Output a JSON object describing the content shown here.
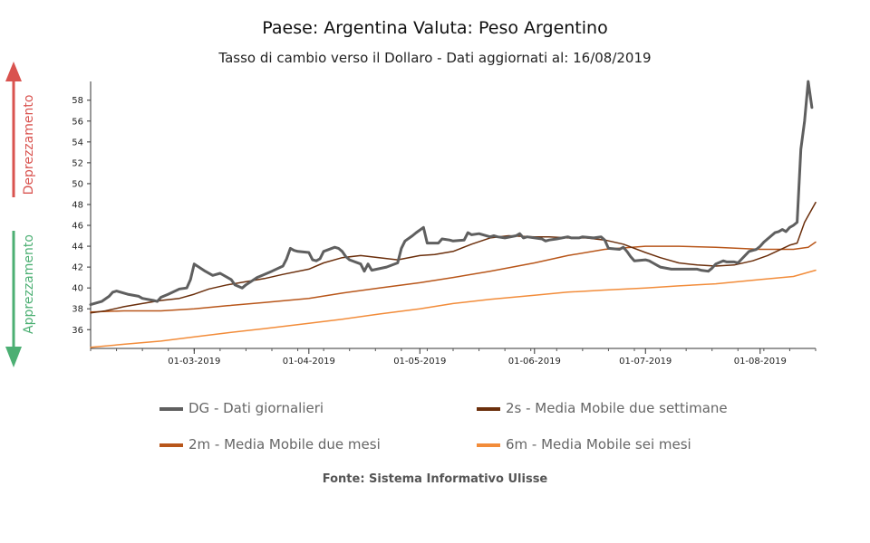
{
  "chart_data": {
    "type": "line",
    "title": "Paese: Argentina Valuta: Peso Argentino",
    "subtitle": "Tasso di cambio verso il Dollaro - Dati aggiornati al: 16/08/2019",
    "source": "Fonte: Sistema Informativo Ulisse",
    "side_labels": {
      "up": "Deprezzamento",
      "down": "Apprezzamento",
      "up_color": "#d9534f",
      "down_color": "#4caf73"
    },
    "x_start": "2019-02-01",
    "x_end": "2019-08-16",
    "xticks": [
      {
        "date": "2019-03-01",
        "label": "01-03-2019"
      },
      {
        "date": "2019-04-01",
        "label": "01-04-2019"
      },
      {
        "date": "2019-05-01",
        "label": "01-05-2019"
      },
      {
        "date": "2019-06-01",
        "label": "01-06-2019"
      },
      {
        "date": "2019-07-01",
        "label": "01-07-2019"
      },
      {
        "date": "2019-08-01",
        "label": "01-08-2019"
      }
    ],
    "ylim": [
      34.2,
      59.8
    ],
    "yticks": [
      36,
      38,
      40,
      42,
      44,
      46,
      48,
      50,
      52,
      54,
      56,
      58
    ],
    "grid": false,
    "legend_position": "bottom",
    "series": [
      {
        "name": "DG - Dati giornalieri",
        "color": "#5f5f5f",
        "width": 3,
        "points": [
          [
            "2019-02-01",
            38.4
          ],
          [
            "2019-02-04",
            38.7
          ],
          [
            "2019-02-06",
            39.2
          ],
          [
            "2019-02-07",
            39.6
          ],
          [
            "2019-02-08",
            39.7
          ],
          [
            "2019-02-11",
            39.4
          ],
          [
            "2019-02-14",
            39.2
          ],
          [
            "2019-02-15",
            39.0
          ],
          [
            "2019-02-18",
            38.8
          ],
          [
            "2019-02-19",
            38.7
          ],
          [
            "2019-02-20",
            39.1
          ],
          [
            "2019-02-22",
            39.4
          ],
          [
            "2019-02-25",
            39.9
          ],
          [
            "2019-02-27",
            40.0
          ],
          [
            "2019-02-28",
            40.8
          ],
          [
            "2019-03-01",
            42.3
          ],
          [
            "2019-03-04",
            41.6
          ],
          [
            "2019-03-06",
            41.2
          ],
          [
            "2019-03-08",
            41.4
          ],
          [
            "2019-03-11",
            40.8
          ],
          [
            "2019-03-12",
            40.3
          ],
          [
            "2019-03-14",
            40.0
          ],
          [
            "2019-03-15",
            40.3
          ],
          [
            "2019-03-18",
            41.0
          ],
          [
            "2019-03-20",
            41.3
          ],
          [
            "2019-03-22",
            41.6
          ],
          [
            "2019-03-25",
            42.1
          ],
          [
            "2019-03-26",
            42.8
          ],
          [
            "2019-03-27",
            43.8
          ],
          [
            "2019-03-28",
            43.6
          ],
          [
            "2019-03-29",
            43.5
          ],
          [
            "2019-04-01",
            43.4
          ],
          [
            "2019-04-02",
            42.7
          ],
          [
            "2019-04-03",
            42.6
          ],
          [
            "2019-04-04",
            42.8
          ],
          [
            "2019-04-05",
            43.5
          ],
          [
            "2019-04-08",
            43.9
          ],
          [
            "2019-04-09",
            43.8
          ],
          [
            "2019-04-10",
            43.5
          ],
          [
            "2019-04-11",
            43.0
          ],
          [
            "2019-04-12",
            42.7
          ],
          [
            "2019-04-15",
            42.3
          ],
          [
            "2019-04-16",
            41.6
          ],
          [
            "2019-04-17",
            42.3
          ],
          [
            "2019-04-18",
            41.7
          ],
          [
            "2019-04-22",
            42.0
          ],
          [
            "2019-04-25",
            42.4
          ],
          [
            "2019-04-26",
            43.8
          ],
          [
            "2019-04-27",
            44.5
          ],
          [
            "2019-04-29",
            45.0
          ],
          [
            "2019-04-30",
            45.3
          ],
          [
            "2019-05-02",
            45.8
          ],
          [
            "2019-05-03",
            44.3
          ],
          [
            "2019-05-06",
            44.3
          ],
          [
            "2019-05-07",
            44.7
          ],
          [
            "2019-05-09",
            44.6
          ],
          [
            "2019-05-10",
            44.5
          ],
          [
            "2019-05-13",
            44.6
          ],
          [
            "2019-05-14",
            45.3
          ],
          [
            "2019-05-15",
            45.1
          ],
          [
            "2019-05-17",
            45.2
          ],
          [
            "2019-05-20",
            44.9
          ],
          [
            "2019-05-21",
            45.0
          ],
          [
            "2019-05-22",
            44.9
          ],
          [
            "2019-05-24",
            44.8
          ],
          [
            "2019-05-27",
            45.0
          ],
          [
            "2019-05-28",
            45.2
          ],
          [
            "2019-05-29",
            44.8
          ],
          [
            "2019-05-30",
            44.9
          ],
          [
            "2019-06-03",
            44.7
          ],
          [
            "2019-06-04",
            44.5
          ],
          [
            "2019-06-05",
            44.6
          ],
          [
            "2019-06-07",
            44.7
          ],
          [
            "2019-06-10",
            44.9
          ],
          [
            "2019-06-11",
            44.8
          ],
          [
            "2019-06-13",
            44.8
          ],
          [
            "2019-06-14",
            44.9
          ],
          [
            "2019-06-17",
            44.8
          ],
          [
            "2019-06-19",
            44.9
          ],
          [
            "2019-06-20",
            44.6
          ],
          [
            "2019-06-21",
            43.8
          ],
          [
            "2019-06-24",
            43.7
          ],
          [
            "2019-06-25",
            43.9
          ],
          [
            "2019-06-26",
            43.5
          ],
          [
            "2019-06-27",
            43.0
          ],
          [
            "2019-06-28",
            42.6
          ],
          [
            "2019-07-01",
            42.7
          ],
          [
            "2019-07-02",
            42.6
          ],
          [
            "2019-07-03",
            42.4
          ],
          [
            "2019-07-04",
            42.2
          ],
          [
            "2019-07-05",
            42.0
          ],
          [
            "2019-07-08",
            41.8
          ],
          [
            "2019-07-10",
            41.8
          ],
          [
            "2019-07-12",
            41.8
          ],
          [
            "2019-07-15",
            41.8
          ],
          [
            "2019-07-16",
            41.7
          ],
          [
            "2019-07-18",
            41.6
          ],
          [
            "2019-07-19",
            41.9
          ],
          [
            "2019-07-20",
            42.3
          ],
          [
            "2019-07-22",
            42.6
          ],
          [
            "2019-07-23",
            42.5
          ],
          [
            "2019-07-25",
            42.5
          ],
          [
            "2019-07-26",
            42.4
          ],
          [
            "2019-07-29",
            43.5
          ],
          [
            "2019-07-31",
            43.7
          ],
          [
            "2019-08-01",
            44.0
          ],
          [
            "2019-08-02",
            44.4
          ],
          [
            "2019-08-05",
            45.3
          ],
          [
            "2019-08-06",
            45.4
          ],
          [
            "2019-08-07",
            45.6
          ],
          [
            "2019-08-08",
            45.4
          ],
          [
            "2019-08-09",
            45.8
          ],
          [
            "2019-08-10",
            46.0
          ],
          [
            "2019-08-11",
            46.3
          ],
          [
            "2019-08-12",
            53.3
          ],
          [
            "2019-08-13",
            56.0
          ],
          [
            "2019-08-14",
            59.8
          ],
          [
            "2019-08-15",
            57.3
          ]
        ]
      },
      {
        "name": "2s - Media Mobile due settimane",
        "color": "#6b2f0c",
        "width": 1.5,
        "points": [
          [
            "2019-02-01",
            37.6
          ],
          [
            "2019-02-05",
            37.8
          ],
          [
            "2019-02-10",
            38.2
          ],
          [
            "2019-02-15",
            38.5
          ],
          [
            "2019-02-20",
            38.8
          ],
          [
            "2019-02-25",
            39.0
          ],
          [
            "2019-03-01",
            39.4
          ],
          [
            "2019-03-05",
            39.9
          ],
          [
            "2019-03-10",
            40.3
          ],
          [
            "2019-03-15",
            40.6
          ],
          [
            "2019-03-20",
            40.9
          ],
          [
            "2019-03-25",
            41.3
          ],
          [
            "2019-04-01",
            41.8
          ],
          [
            "2019-04-05",
            42.4
          ],
          [
            "2019-04-10",
            42.9
          ],
          [
            "2019-04-15",
            43.1
          ],
          [
            "2019-04-20",
            42.9
          ],
          [
            "2019-04-25",
            42.7
          ],
          [
            "2019-05-01",
            43.1
          ],
          [
            "2019-05-05",
            43.2
          ],
          [
            "2019-05-10",
            43.5
          ],
          [
            "2019-05-15",
            44.2
          ],
          [
            "2019-05-20",
            44.8
          ],
          [
            "2019-05-25",
            45.0
          ],
          [
            "2019-06-01",
            44.9
          ],
          [
            "2019-06-05",
            44.9
          ],
          [
            "2019-06-10",
            44.8
          ],
          [
            "2019-06-15",
            44.8
          ],
          [
            "2019-06-20",
            44.6
          ],
          [
            "2019-06-25",
            44.2
          ],
          [
            "2019-07-01",
            43.4
          ],
          [
            "2019-07-05",
            42.9
          ],
          [
            "2019-07-10",
            42.4
          ],
          [
            "2019-07-15",
            42.2
          ],
          [
            "2019-07-20",
            42.1
          ],
          [
            "2019-07-25",
            42.2
          ],
          [
            "2019-07-30",
            42.6
          ],
          [
            "2019-08-03",
            43.1
          ],
          [
            "2019-08-06",
            43.6
          ],
          [
            "2019-08-09",
            44.1
          ],
          [
            "2019-08-11",
            44.3
          ],
          [
            "2019-08-13",
            46.3
          ],
          [
            "2019-08-16",
            48.2
          ]
        ]
      },
      {
        "name": "2m - Media Mobile due mesi",
        "color": "#b8561a",
        "width": 1.5,
        "points": [
          [
            "2019-02-01",
            37.7
          ],
          [
            "2019-02-10",
            37.8
          ],
          [
            "2019-02-20",
            37.8
          ],
          [
            "2019-03-01",
            38.0
          ],
          [
            "2019-03-10",
            38.3
          ],
          [
            "2019-03-20",
            38.6
          ],
          [
            "2019-04-01",
            39.0
          ],
          [
            "2019-04-10",
            39.5
          ],
          [
            "2019-04-20",
            40.0
          ],
          [
            "2019-05-01",
            40.5
          ],
          [
            "2019-05-10",
            41.0
          ],
          [
            "2019-05-20",
            41.6
          ],
          [
            "2019-06-01",
            42.4
          ],
          [
            "2019-06-10",
            43.1
          ],
          [
            "2019-06-20",
            43.7
          ],
          [
            "2019-07-01",
            44.0
          ],
          [
            "2019-07-10",
            44.0
          ],
          [
            "2019-07-20",
            43.9
          ],
          [
            "2019-08-01",
            43.7
          ],
          [
            "2019-08-10",
            43.7
          ],
          [
            "2019-08-14",
            43.9
          ],
          [
            "2019-08-16",
            44.4
          ]
        ]
      },
      {
        "name": "6m - Media Mobile sei mesi",
        "color": "#f28c3a",
        "width": 1.5,
        "points": [
          [
            "2019-02-01",
            34.3
          ],
          [
            "2019-02-10",
            34.6
          ],
          [
            "2019-02-20",
            34.9
          ],
          [
            "2019-03-01",
            35.3
          ],
          [
            "2019-03-10",
            35.7
          ],
          [
            "2019-03-20",
            36.1
          ],
          [
            "2019-04-01",
            36.6
          ],
          [
            "2019-04-10",
            37.0
          ],
          [
            "2019-04-20",
            37.5
          ],
          [
            "2019-05-01",
            38.0
          ],
          [
            "2019-05-10",
            38.5
          ],
          [
            "2019-05-20",
            38.9
          ],
          [
            "2019-06-01",
            39.3
          ],
          [
            "2019-06-10",
            39.6
          ],
          [
            "2019-06-20",
            39.8
          ],
          [
            "2019-07-01",
            40.0
          ],
          [
            "2019-07-10",
            40.2
          ],
          [
            "2019-07-20",
            40.4
          ],
          [
            "2019-08-01",
            40.8
          ],
          [
            "2019-08-10",
            41.1
          ],
          [
            "2019-08-16",
            41.7
          ]
        ]
      }
    ]
  }
}
